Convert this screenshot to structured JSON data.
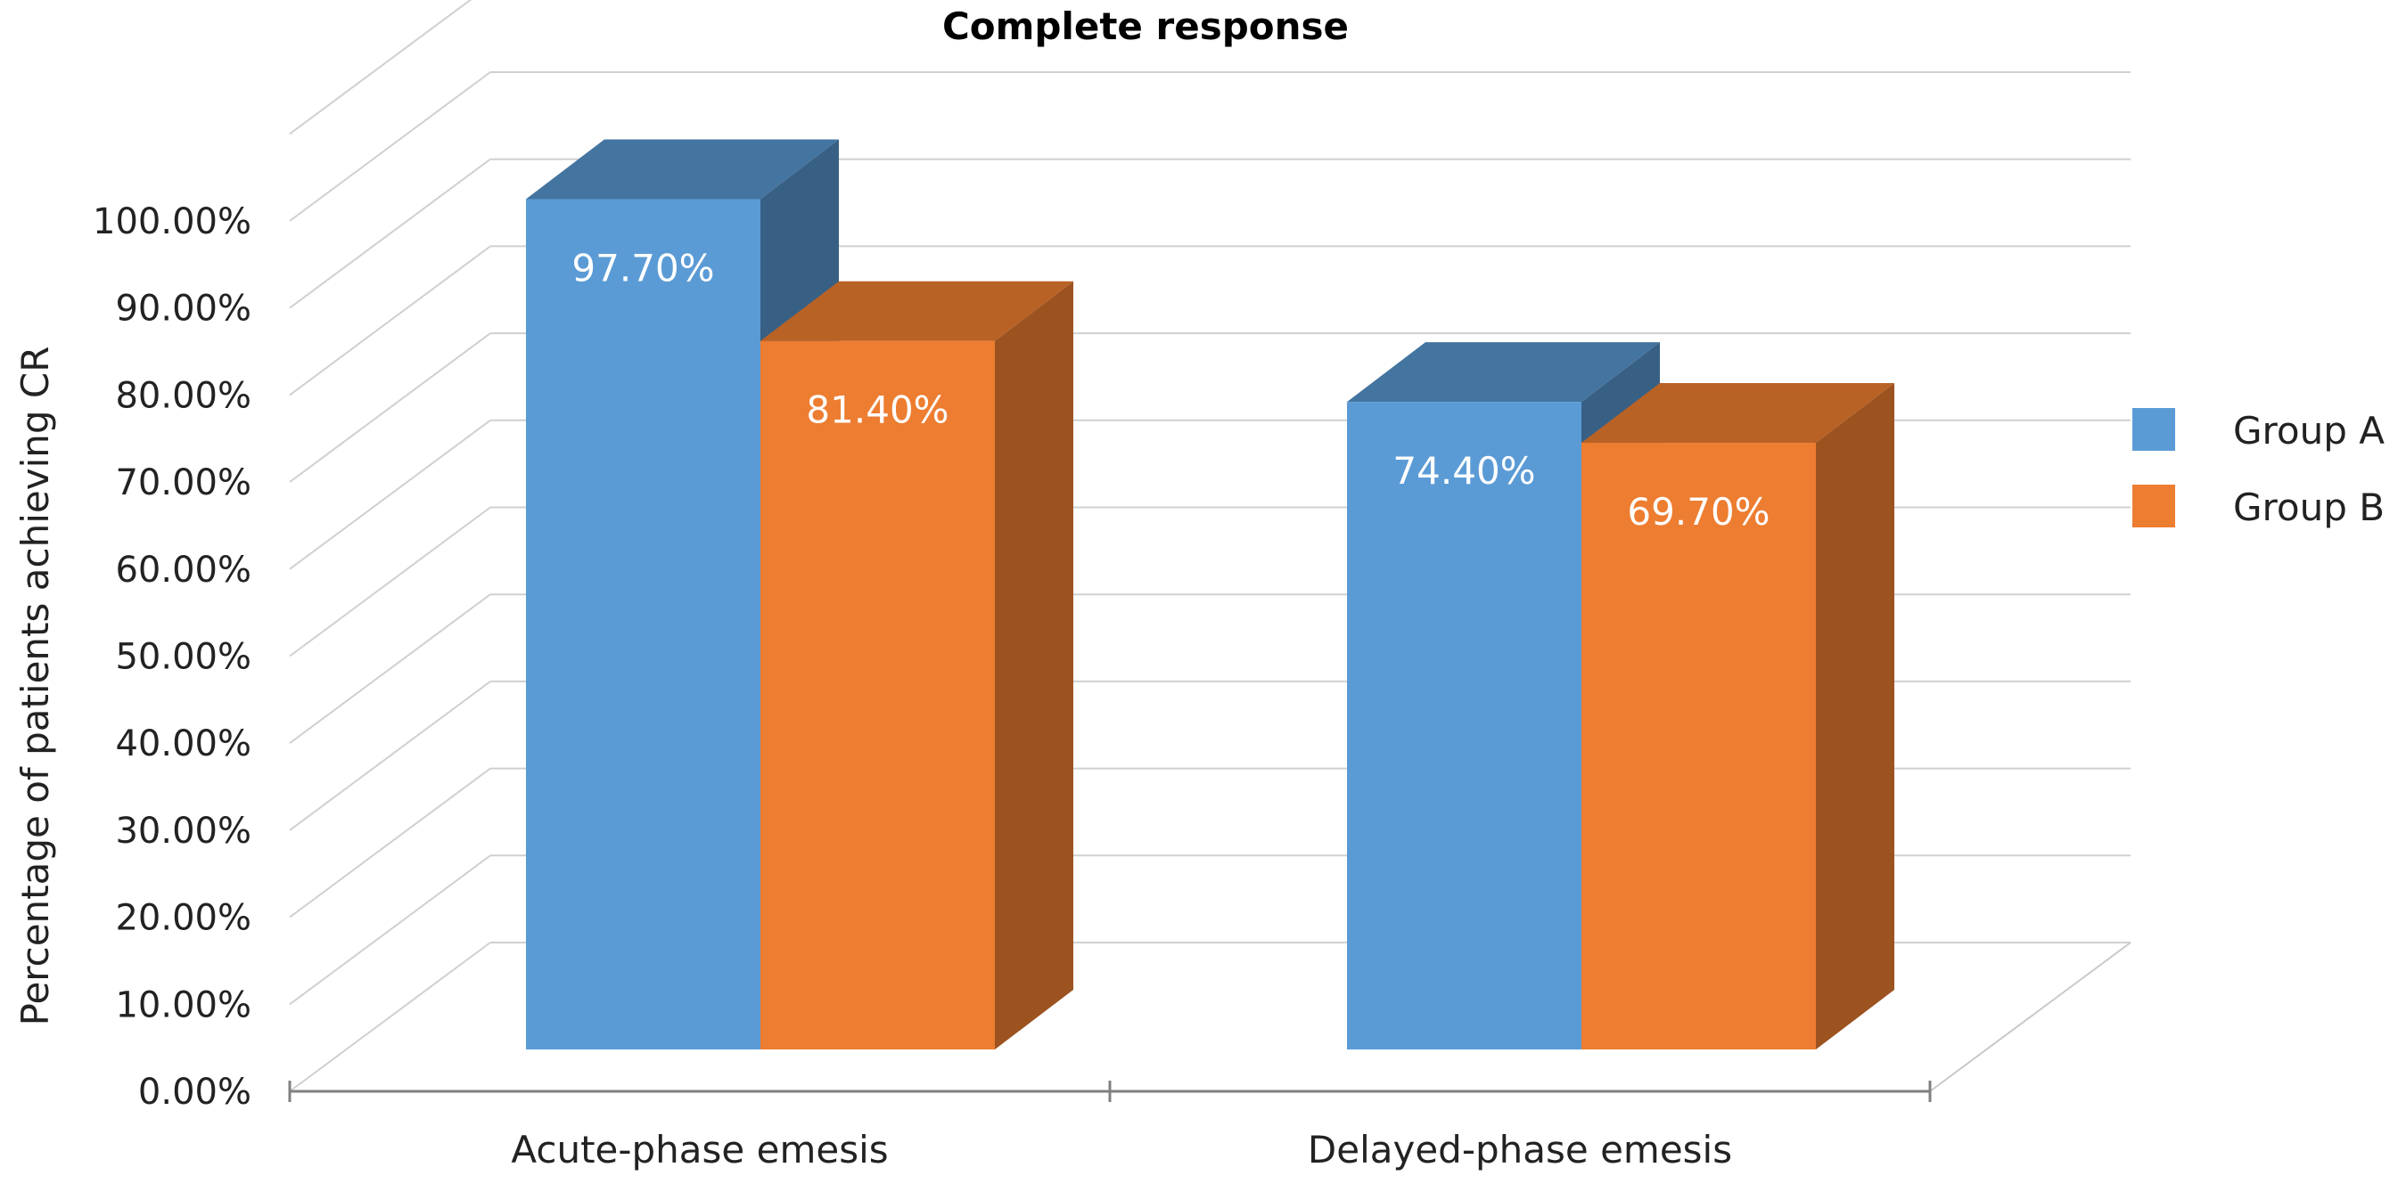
{
  "chart_data": {
    "type": "bar",
    "title": "Complete response",
    "xlabel": "",
    "ylabel": "Percentage of patients achieving CR",
    "categories": [
      "Acute-phase emesis",
      "Delayed-phase emesis"
    ],
    "series": [
      {
        "name": "Group A",
        "values": [
          97.7,
          74.4
        ],
        "labels": [
          "97.70%",
          "74.40%"
        ],
        "color": "#5B9BD5"
      },
      {
        "name": "Group B",
        "values": [
          81.4,
          69.7
        ],
        "labels": [
          "81.40%",
          "69.70%"
        ],
        "color": "#ED7D31"
      }
    ],
    "ylim": [
      0,
      100
    ],
    "yticks": [
      "0.00%",
      "10.00%",
      "20.00%",
      "30.00%",
      "40.00%",
      "50.00%",
      "60.00%",
      "70.00%",
      "80.00%",
      "90.00%",
      "100.00%"
    ],
    "grid": true,
    "legend_position": "right",
    "style": "3d"
  }
}
